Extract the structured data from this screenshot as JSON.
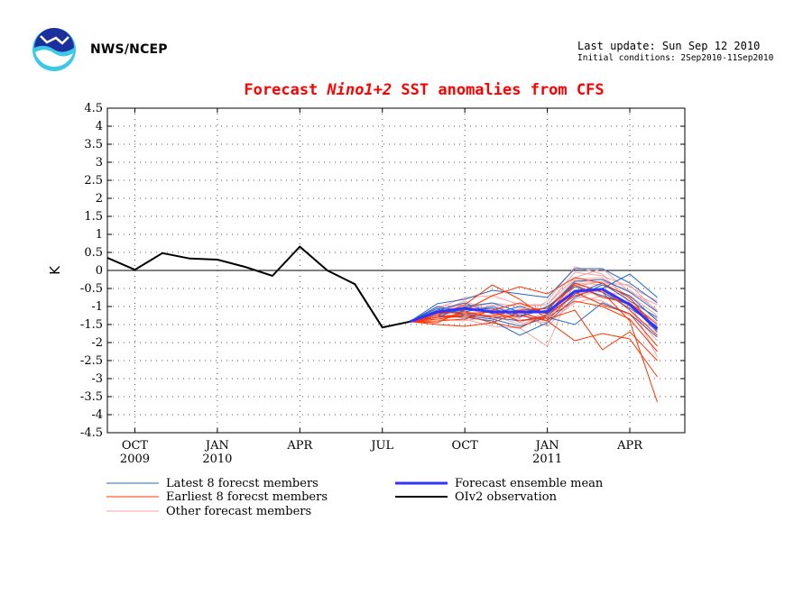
{
  "header": {
    "org": "NWS/NCEP",
    "last_update": "Last update: Sun Sep 12 2010",
    "initial_conditions": "Initial conditions: 2Sep2010-11Sep2010"
  },
  "chart_data": {
    "type": "line",
    "title_prefix": "Forecast ",
    "title_italic": "Nino1+2",
    "title_suffix": " SST anomalies from CFS",
    "ylabel": "K",
    "ylim": [
      -4.5,
      4.5
    ],
    "yticks": [
      "4.5",
      "4",
      "3.5",
      "3",
      "2.5",
      "2",
      "1.5",
      "1",
      "0.5",
      "0",
      "-0.5",
      "-1",
      "-1.5",
      "-2",
      "-2.5",
      "-3",
      "-3.5",
      "-4",
      "-4.5"
    ],
    "x_axis": [
      {
        "month": "OCT",
        "year": "2009",
        "x": 1
      },
      {
        "month": "JAN",
        "year": "2010",
        "x": 4
      },
      {
        "month": "APR",
        "year": "",
        "x": 7
      },
      {
        "month": "JUL",
        "year": "",
        "x": 10
      },
      {
        "month": "OCT",
        "year": "",
        "x": 13
      },
      {
        "month": "JAN",
        "year": "2011",
        "x": 16
      },
      {
        "month": "APR",
        "year": "",
        "x": 19
      }
    ],
    "xlim": [
      0,
      21
    ],
    "grid": true,
    "zero_line": true,
    "observation": {
      "name": "OIv2 observation",
      "color": "#000000",
      "x": [
        0,
        1,
        2,
        3,
        4,
        5,
        6,
        7,
        8,
        9,
        10,
        11
      ],
      "y": [
        0.35,
        0.02,
        0.48,
        0.33,
        0.3,
        0.1,
        -0.15,
        0.66,
        0.0,
        -0.38,
        -1.58,
        -1.42
      ]
    },
    "ensemble_mean": {
      "name": "Forecast ensemble mean",
      "color": "#3333ff",
      "x": [
        11,
        12,
        13,
        14,
        15,
        16,
        17,
        18,
        19,
        20
      ],
      "y": [
        -1.42,
        -1.15,
        -1.05,
        -1.15,
        -1.15,
        -1.15,
        -0.58,
        -0.52,
        -0.95,
        -1.62
      ]
    },
    "latest_members": {
      "name": "Latest 8 forecst members",
      "color": "#2266cc",
      "x": [
        11,
        12,
        13,
        14,
        15,
        16,
        17,
        18,
        19,
        20
      ],
      "series": [
        [
          -1.42,
          -0.92,
          -0.8,
          -0.55,
          -0.65,
          -0.75,
          0.05,
          0.05,
          -0.35,
          -0.9
        ],
        [
          -1.42,
          -1.0,
          -1.15,
          -1.0,
          -1.25,
          -1.1,
          -0.3,
          -0.25,
          -0.6,
          -1.15
        ],
        [
          -1.42,
          -1.1,
          -0.9,
          -1.2,
          -1.0,
          -1.2,
          -0.55,
          -0.5,
          -0.1,
          -0.75
        ],
        [
          -1.42,
          -1.25,
          -1.3,
          -1.4,
          -1.8,
          -1.45,
          -0.75,
          -0.4,
          -0.7,
          -1.4
        ],
        [
          -1.42,
          -1.05,
          -1.25,
          -1.35,
          -1.55,
          -1.3,
          -1.5,
          -0.9,
          -1.2,
          -1.85
        ],
        [
          -1.42,
          -1.3,
          -1.0,
          -0.9,
          -1.15,
          -1.05,
          -0.35,
          -0.6,
          -1.05,
          -1.55
        ],
        [
          -1.42,
          -1.15,
          -1.2,
          -1.3,
          -1.4,
          -1.25,
          -0.65,
          -0.35,
          -0.85,
          -1.3
        ],
        [
          -1.42,
          -1.2,
          -1.1,
          -1.05,
          -1.3,
          -1.0,
          -0.45,
          -0.7,
          -0.95,
          -1.7
        ]
      ]
    },
    "earliest_members": {
      "name": "Earliest 8 forecst members",
      "color": "#ff3300",
      "x": [
        11,
        12,
        13,
        14,
        15,
        16,
        17,
        18,
        19,
        20
      ],
      "series": [
        [
          -1.42,
          -1.45,
          -1.1,
          -0.7,
          -0.45,
          -0.65,
          -0.2,
          -0.35,
          -0.75,
          -1.65
        ],
        [
          -1.42,
          -1.4,
          -1.35,
          -1.1,
          -0.9,
          -1.2,
          -0.35,
          -0.6,
          -1.4,
          -3.65
        ],
        [
          -1.42,
          -1.3,
          -1.25,
          -1.45,
          -1.15,
          -1.4,
          -1.95,
          -1.75,
          -1.9,
          -2.95
        ],
        [
          -1.42,
          -1.25,
          -0.95,
          -0.4,
          -0.8,
          -1.35,
          -1.1,
          -2.2,
          -1.7,
          -2.5
        ],
        [
          -1.42,
          -1.5,
          -1.55,
          -1.45,
          -1.6,
          -1.2,
          -0.7,
          -0.5,
          -1.1,
          -1.8
        ],
        [
          -1.42,
          -1.35,
          -1.25,
          -1.25,
          -1.1,
          -1.05,
          -0.4,
          -0.75,
          -0.9,
          -1.5
        ],
        [
          -1.42,
          -1.2,
          -1.15,
          -1.3,
          -1.25,
          -1.4,
          -0.6,
          -0.95,
          -1.2,
          -2.1
        ],
        [
          -1.42,
          -1.3,
          -1.2,
          -1.15,
          -1.4,
          -1.3,
          -0.85,
          -1.0,
          -1.35,
          -2.25
        ]
      ]
    },
    "other_members": {
      "name": "Other forecast members",
      "color": "#f4a3a3",
      "x": [
        11,
        12,
        13,
        14,
        15,
        16,
        17,
        18,
        19,
        20
      ],
      "series": [
        [
          -1.42,
          -1.05,
          -0.75,
          -0.7,
          -0.95,
          -0.95,
          -0.05,
          -0.15,
          -0.45,
          -0.85
        ],
        [
          -1.42,
          -1.15,
          -1.35,
          -1.55,
          -1.6,
          -2.1,
          -0.3,
          -0.35,
          -0.4,
          -1.15
        ],
        [
          -1.42,
          -1.25,
          -1.0,
          -1.2,
          -1.3,
          -0.85,
          0.1,
          -0.1,
          -0.9,
          -1.45
        ],
        [
          -1.42,
          -1.1,
          -1.2,
          -1.05,
          -1.45,
          -1.15,
          -0.55,
          -0.6,
          -0.7,
          -1.25
        ],
        [
          -1.42,
          -1.35,
          -1.4,
          -1.25,
          -1.2,
          -1.55,
          -0.8,
          -0.5,
          -1.0,
          -1.6
        ],
        [
          -1.42,
          -1.0,
          -0.95,
          -1.35,
          -1.1,
          -1.05,
          -0.25,
          -0.2,
          -0.75,
          -1.75
        ],
        [
          -1.42,
          -1.2,
          -1.15,
          -0.95,
          -1.25,
          -1.3,
          -0.65,
          -0.55,
          -1.1,
          -1.95
        ],
        [
          -1.42,
          -1.3,
          -1.3,
          -1.4,
          -1.05,
          -1.2,
          -0.45,
          -0.3,
          -0.55,
          -1.1
        ],
        [
          -1.42,
          -1.15,
          -0.85,
          -1.15,
          -1.35,
          -1.45,
          -0.9,
          -0.7,
          -0.9,
          -2.4
        ],
        [
          -1.42,
          -1.05,
          -1.05,
          -0.9,
          -1.0,
          -0.95,
          -0.2,
          0.05,
          -0.6,
          -0.95
        ],
        [
          -1.42,
          -1.25,
          -1.25,
          -1.25,
          -1.5,
          -1.25,
          -0.7,
          -0.85,
          -1.25,
          -1.65
        ],
        [
          -1.42,
          -1.1,
          -0.95,
          -1.1,
          -1.2,
          -1.1,
          -0.35,
          -0.4,
          -0.8,
          -1.35
        ]
      ]
    }
  }
}
